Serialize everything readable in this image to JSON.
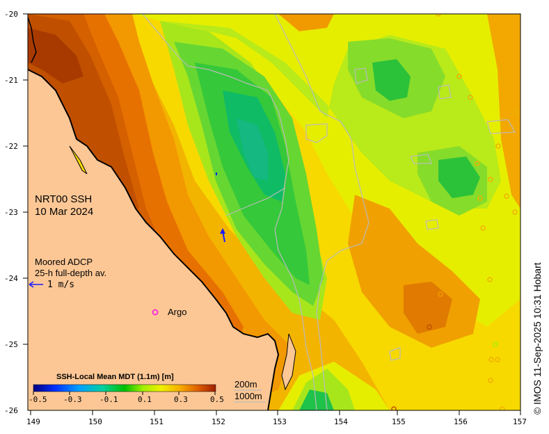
{
  "product": {
    "title_line1": "NRT00 SSH",
    "title_line2": "10 Mar 2024"
  },
  "adcp": {
    "line1": "Moored ADCP",
    "line2": "25-h full-depth av.",
    "scale": "1 m/s"
  },
  "argo_label": "Argo",
  "colorbar": {
    "title": "SSH-Local Mean MDT (1.1m) [m]",
    "ticks": [
      "-0.5",
      "-0.3",
      "-0.1",
      "0.1",
      "0.3",
      "0.5"
    ]
  },
  "depth_legend": {
    "contour1": "200m",
    "contour2": "1000m"
  },
  "credit": "© IMOS 11-Sep-2025 10:31 Hobart",
  "axes": {
    "x_ticks": [
      "149",
      "150",
      "151",
      "152",
      "153",
      "154",
      "155",
      "156",
      "157"
    ],
    "y_ticks": [
      "-20",
      "-21",
      "-22",
      "-23",
      "-24",
      "-25",
      "-26"
    ],
    "xlim": [
      149,
      157
    ],
    "ylim": [
      -26,
      -20
    ]
  },
  "colors": {
    "land": "#fcc795",
    "coast": "#000000",
    "ocean_base": "#f3b400",
    "argo": "#ff33dd",
    "adcp_arrow": "#1a1aff"
  }
}
